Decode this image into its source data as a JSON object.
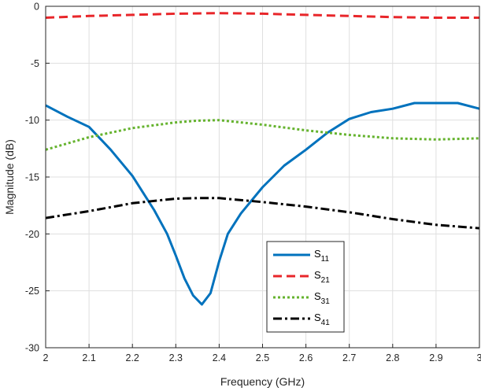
{
  "chart_data": {
    "type": "line",
    "title": "",
    "xlabel": "Frequency (GHz)",
    "ylabel": "Magnitude (dB)",
    "xlim": [
      2,
      3
    ],
    "ylim": [
      -30,
      0
    ],
    "xticks": [
      "2",
      "2.1",
      "2.2",
      "2.3",
      "2.4",
      "2.5",
      "2.6",
      "2.7",
      "2.8",
      "2.9",
      "3"
    ],
    "yticks": [
      "0",
      "-5",
      "-10",
      "-15",
      "-20",
      "-25",
      "-30"
    ],
    "grid": true,
    "legend_position": "bottom-center",
    "series": [
      {
        "name": "S11",
        "base": "S",
        "sub": "11",
        "color": "#0072BD",
        "dash": "solid",
        "x": [
          2.0,
          2.05,
          2.1,
          2.15,
          2.2,
          2.25,
          2.28,
          2.3,
          2.32,
          2.34,
          2.36,
          2.38,
          2.4,
          2.42,
          2.45,
          2.5,
          2.55,
          2.6,
          2.65,
          2.7,
          2.75,
          2.8,
          2.85,
          2.9,
          2.95,
          3.0
        ],
        "y": [
          -8.7,
          -9.7,
          -10.6,
          -12.6,
          -14.9,
          -17.9,
          -20.0,
          -21.9,
          -23.9,
          -25.4,
          -26.2,
          -25.2,
          -22.4,
          -20.0,
          -18.2,
          -15.9,
          -14.0,
          -12.6,
          -11.1,
          -9.9,
          -9.3,
          -9.0,
          -8.5,
          -8.5,
          -8.5,
          -9.0
        ]
      },
      {
        "name": "S21",
        "base": "S",
        "sub": "21",
        "color": "#E8262A",
        "dash": "dashed",
        "x": [
          2.0,
          2.1,
          2.2,
          2.3,
          2.4,
          2.5,
          2.6,
          2.7,
          2.8,
          2.9,
          3.0
        ],
        "y": [
          -1.0,
          -0.85,
          -0.75,
          -0.65,
          -0.6,
          -0.65,
          -0.75,
          -0.85,
          -0.95,
          -1.0,
          -1.0
        ]
      },
      {
        "name": "S31",
        "base": "S",
        "sub": "31",
        "color": "#65B32E",
        "dash": "dotted",
        "x": [
          2.0,
          2.1,
          2.2,
          2.3,
          2.35,
          2.4,
          2.5,
          2.6,
          2.7,
          2.8,
          2.9,
          3.0
        ],
        "y": [
          -12.6,
          -11.5,
          -10.7,
          -10.2,
          -10.05,
          -10.0,
          -10.4,
          -10.9,
          -11.3,
          -11.6,
          -11.7,
          -11.6
        ]
      },
      {
        "name": "S41",
        "base": "S",
        "sub": "41",
        "color": "#000000",
        "dash": "dashdot",
        "x": [
          2.0,
          2.1,
          2.2,
          2.3,
          2.35,
          2.4,
          2.5,
          2.6,
          2.7,
          2.8,
          2.9,
          3.0
        ],
        "y": [
          -18.6,
          -18.0,
          -17.3,
          -16.9,
          -16.85,
          -16.85,
          -17.2,
          -17.6,
          -18.1,
          -18.7,
          -19.2,
          -19.5
        ]
      }
    ]
  }
}
